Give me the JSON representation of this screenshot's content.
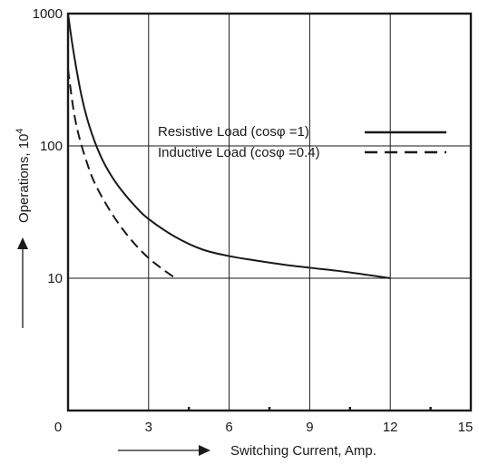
{
  "chart_data": {
    "type": "line",
    "title": "",
    "xlabel": "Switching Current, Amp.",
    "ylabel": "Operations, 10",
    "ylabel_superscript": "4",
    "xlim": [
      0,
      15
    ],
    "ylim": [
      1,
      1000
    ],
    "yscale": "log",
    "grid": true,
    "legend_position": "right",
    "x_ticks": [
      0,
      3,
      6,
      9,
      12,
      15
    ],
    "x_tick_labels": [
      "0",
      "3",
      "6",
      "9",
      "12",
      "15"
    ],
    "y_ticks": [
      10,
      100,
      1000
    ],
    "y_tick_labels": [
      "10",
      "100",
      "1000"
    ],
    "x_minor_ticks": [
      4.5,
      7.5,
      10.5,
      13.5
    ],
    "series": [
      {
        "name": "Resistive Load (cosφ =1)",
        "style": "solid",
        "color": "#1a1a1a",
        "x": [
          0,
          0.2,
          0.5,
          0.8,
          1.2,
          1.6,
          2.0,
          2.5,
          3.0,
          4.0,
          5.0,
          6.0,
          7.0,
          8.0,
          9.0,
          10.0,
          11.0,
          12.0
        ],
        "y": [
          1000,
          520,
          240,
          140,
          85,
          60,
          46,
          35,
          28,
          20.5,
          16.5,
          14.7,
          13.6,
          12.7,
          12.0,
          11.4,
          10.7,
          10
        ]
      },
      {
        "name": "Inductive Load (cosφ =0.4)",
        "style": "dashed",
        "color": "#1a1a1a",
        "x": [
          0,
          0.2,
          0.4,
          0.7,
          1.0,
          1.5,
          2.0,
          2.5,
          3.0,
          3.5,
          4.0
        ],
        "y": [
          380,
          190,
          120,
          75,
          52,
          34,
          24,
          18,
          14.2,
          11.8,
          10
        ]
      }
    ]
  }
}
